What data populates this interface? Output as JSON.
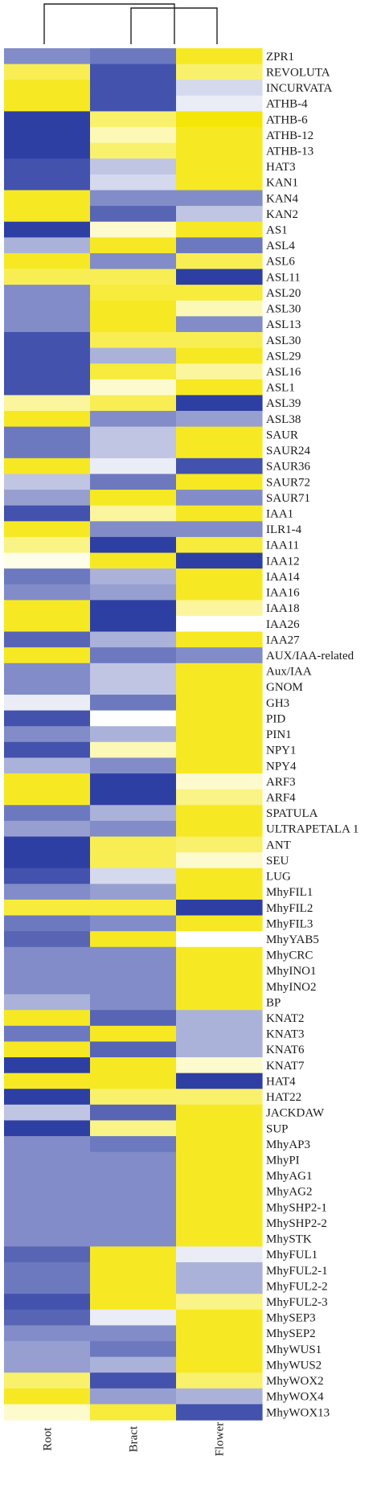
{
  "chart_data": {
    "type": "heatmap",
    "columns": [
      "Root",
      "Bract",
      "Flower"
    ],
    "rows": [
      "ZPR1",
      "REVOLUTA",
      "INCURVATA",
      "ATHB-4",
      "ATHB-6",
      "ATHB-12",
      "ATHB-13",
      "HAT3",
      "KAN1",
      "KAN4",
      "KAN2",
      "AS1",
      "ASL4",
      "ASL6",
      "ASL11",
      "ASL20",
      "ASL30",
      "ASL13",
      "ASL30",
      "ASL29",
      "ASL16",
      "ASL1",
      "ASL39",
      "ASL38",
      "SAUR",
      "SAUR24",
      "SAUR36",
      "SAUR72",
      "SAUR71",
      "IAA1",
      "ILR1-4",
      "IAA11",
      "IAA12",
      "IAA14",
      "IAA16",
      "IAA18",
      "IAA26",
      "IAA27",
      "AUX/IAA-related",
      "Aux/IAA",
      "GNOM",
      "GH3",
      "PID",
      "PIN1",
      "NPY1",
      "NPY4",
      "ARF3",
      "ARF4",
      "SPATULA",
      "ULTRAPETALA 1",
      "ANT",
      "SEU",
      "LUG",
      "MhyFIL1",
      "MhyFIL2",
      "MhyFIL3",
      "MhyYAB5",
      "MhyCRC",
      "MhyINO1",
      "MhyINO2",
      "BP",
      "KNAT2",
      "KNAT3",
      "KNAT6",
      "KNAT7",
      "HAT4",
      "HAT22",
      "JACKDAW",
      "SUP",
      "MhyAP3",
      "MhyPI",
      "MhyAG1",
      "MhyAG2",
      "MhySHP2-1",
      "MhySHP2-2",
      "MhySTK",
      "MhyFUL1",
      "MhyFUL2-1",
      "MhyFUL2-2",
      "MhyFUL2-3",
      "MhySEP3",
      "MhySEP2",
      "MhyWUS1",
      "MhyWUS2",
      "MhyWOX2",
      "MhyWOX4",
      "MhyWOX13"
    ],
    "values": [
      [
        -0.6,
        -0.7,
        0.9
      ],
      [
        0.7,
        -0.9,
        0.6
      ],
      [
        0.9,
        -0.9,
        -0.2
      ],
      [
        0.9,
        -0.9,
        -0.1
      ],
      [
        -1.0,
        0.6,
        1.0
      ],
      [
        -1.0,
        0.3,
        0.9
      ],
      [
        -1.0,
        0.6,
        0.9
      ],
      [
        -0.9,
        -0.3,
        0.9
      ],
      [
        -0.9,
        -0.2,
        0.9
      ],
      [
        0.9,
        -0.6,
        -0.6
      ],
      [
        0.9,
        -0.8,
        -0.3
      ],
      [
        -1.0,
        0.2,
        0.9
      ],
      [
        -0.4,
        0.9,
        -0.7
      ],
      [
        0.9,
        -0.6,
        0.7
      ],
      [
        0.7,
        0.7,
        -1.0
      ],
      [
        -0.6,
        0.8,
        0.8
      ],
      [
        -0.6,
        0.9,
        0.3
      ],
      [
        -0.6,
        0.9,
        -0.6
      ],
      [
        -0.9,
        0.7,
        0.7
      ],
      [
        -0.9,
        -0.4,
        0.9
      ],
      [
        -0.9,
        0.8,
        0.4
      ],
      [
        -0.9,
        0.2,
        0.9
      ],
      [
        0.4,
        0.7,
        -1.0
      ],
      [
        0.9,
        -0.6,
        -0.5
      ],
      [
        -0.7,
        -0.3,
        0.9
      ],
      [
        -0.7,
        -0.3,
        0.9
      ],
      [
        0.9,
        -0.1,
        -0.9
      ],
      [
        -0.3,
        -0.7,
        0.9
      ],
      [
        -0.5,
        0.9,
        -0.6
      ],
      [
        -0.9,
        0.4,
        0.9
      ],
      [
        0.9,
        -0.6,
        -0.6
      ],
      [
        0.5,
        -1.0,
        0.8
      ],
      [
        0.1,
        0.9,
        -1.0
      ],
      [
        -0.7,
        -0.4,
        0.9
      ],
      [
        -0.6,
        -0.5,
        0.9
      ],
      [
        0.9,
        -1.0,
        0.4
      ],
      [
        0.9,
        -1.0,
        -0.0
      ],
      [
        -0.8,
        -0.4,
        0.9
      ],
      [
        0.9,
        -0.7,
        -0.6
      ],
      [
        -0.6,
        -0.3,
        0.9
      ],
      [
        -0.6,
        -0.3,
        0.9
      ],
      [
        -0.1,
        -0.7,
        0.9
      ],
      [
        -0.9,
        0.0,
        0.9
      ],
      [
        -0.6,
        -0.4,
        0.9
      ],
      [
        -0.9,
        0.3,
        0.9
      ],
      [
        -0.4,
        -0.6,
        0.9
      ],
      [
        0.9,
        -1.0,
        0.2
      ],
      [
        0.9,
        -1.0,
        0.5
      ],
      [
        -0.7,
        -0.4,
        0.9
      ],
      [
        -0.5,
        -0.6,
        0.9
      ],
      [
        -1.0,
        0.7,
        0.6
      ],
      [
        -1.0,
        0.7,
        0.2
      ],
      [
        -0.9,
        -0.2,
        0.9
      ],
      [
        -0.6,
        -0.5,
        0.9
      ],
      [
        0.8,
        0.8,
        -1.0
      ],
      [
        -0.7,
        -0.6,
        0.9
      ],
      [
        -0.8,
        0.9,
        0.0
      ],
      [
        -0.6,
        -0.6,
        0.9
      ],
      [
        -0.6,
        -0.6,
        0.9
      ],
      [
        -0.6,
        -0.6,
        0.9
      ],
      [
        -0.4,
        -0.6,
        0.9
      ],
      [
        0.9,
        -0.8,
        -0.4
      ],
      [
        -0.7,
        0.9,
        -0.4
      ],
      [
        0.9,
        -0.8,
        -0.4
      ],
      [
        -1.0,
        0.9,
        0.2
      ],
      [
        0.9,
        0.9,
        -1.0
      ],
      [
        -1.0,
        0.6,
        0.6
      ],
      [
        -0.3,
        -0.8,
        0.9
      ],
      [
        -1.0,
        0.5,
        0.9
      ],
      [
        -0.6,
        -0.7,
        0.9
      ],
      [
        -0.6,
        -0.6,
        0.9
      ],
      [
        -0.6,
        -0.6,
        0.9
      ],
      [
        -0.6,
        -0.6,
        0.9
      ],
      [
        -0.6,
        -0.6,
        0.9
      ],
      [
        -0.6,
        -0.6,
        0.9
      ],
      [
        -0.6,
        -0.6,
        0.9
      ],
      [
        -0.8,
        0.9,
        -0.1
      ],
      [
        -0.7,
        0.9,
        -0.4
      ],
      [
        -0.7,
        0.9,
        -0.4
      ],
      [
        -0.9,
        0.9,
        0.5
      ],
      [
        -0.8,
        -0.1,
        0.9
      ],
      [
        -0.6,
        -0.6,
        0.9
      ],
      [
        -0.5,
        -0.7,
        0.9
      ],
      [
        -0.5,
        -0.4,
        0.9
      ],
      [
        0.6,
        -0.9,
        0.6
      ],
      [
        0.9,
        -0.5,
        -0.4
      ],
      [
        0.2,
        0.8,
        -0.9
      ]
    ],
    "color_scale": {
      "low": "#2e3fa3",
      "mid": "#ffffff",
      "high": "#f5e60a"
    },
    "legend": "none",
    "grid": false
  }
}
